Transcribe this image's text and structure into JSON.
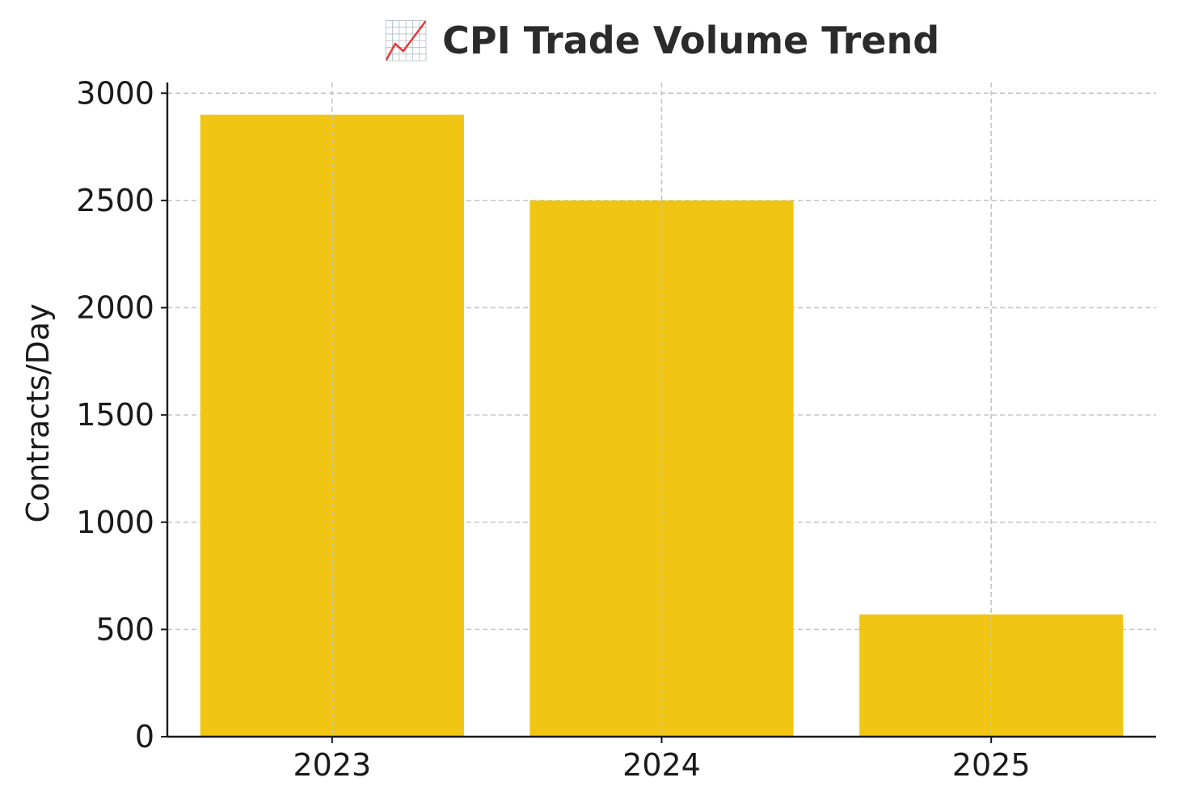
{
  "chart_data": {
    "type": "bar",
    "title": "📈 CPI Trade Volume Trend",
    "xlabel": "",
    "ylabel": "Contracts/Day",
    "categories": [
      "2023",
      "2024",
      "2025"
    ],
    "values": [
      2900,
      2500,
      570
    ],
    "ylim": [
      0,
      3050
    ],
    "yticks": [
      0,
      500,
      1000,
      1500,
      2000,
      2500,
      3000
    ],
    "grid": true,
    "bar_color": "#f0c514"
  }
}
